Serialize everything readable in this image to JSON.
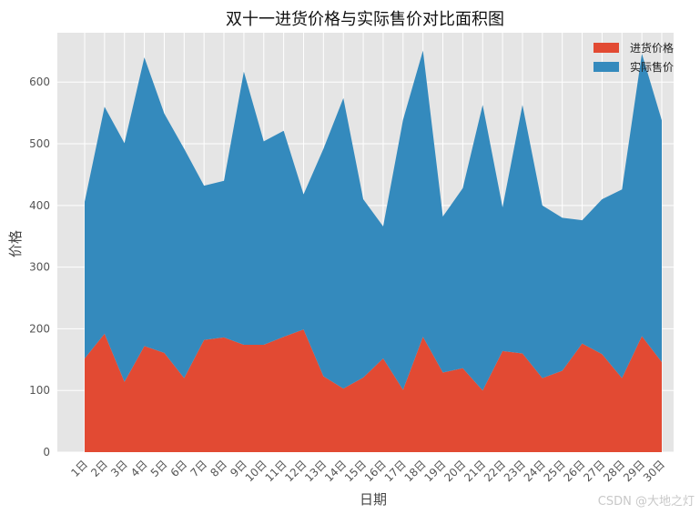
{
  "chart_data": {
    "type": "area",
    "title": "双十一进货价格与实际售价对比面积图",
    "xlabel": "日期",
    "ylabel": "价格",
    "categories": [
      "1日",
      "2日",
      "3日",
      "4日",
      "5日",
      "6日",
      "7日",
      "8日",
      "9日",
      "10日",
      "11日",
      "12日",
      "13日",
      "14日",
      "15日",
      "16日",
      "17日",
      "18日",
      "19日",
      "20日",
      "21日",
      "22日",
      "23日",
      "24日",
      "25日",
      "26日",
      "27日",
      "28日",
      "29日",
      "30日"
    ],
    "ylim": [
      0,
      680
    ],
    "yticks": [
      0,
      100,
      200,
      300,
      400,
      500,
      600
    ],
    "grid": true,
    "stacked": true,
    "legend_position": "top-right",
    "series": [
      {
        "name": "进货价格",
        "color": "#E24A33",
        "values": [
          152,
          192,
          114,
          172,
          161,
          120,
          182,
          186,
          174,
          174,
          187,
          199,
          123,
          103,
          121,
          152,
          101,
          187,
          129,
          136,
          100,
          164,
          160,
          120,
          132,
          176,
          159,
          120,
          188,
          146
        ]
      },
      {
        "name": "实际售价",
        "color": "#348ABD",
        "values": [
          254,
          368,
          387,
          468,
          388,
          372,
          250,
          254,
          443,
          330,
          334,
          219,
          369,
          471,
          289,
          214,
          438,
          464,
          253,
          292,
          463,
          233,
          403,
          280,
          248,
          200,
          251,
          306,
          458,
          392
        ]
      }
    ]
  },
  "watermark": "CSDN @大地之灯"
}
